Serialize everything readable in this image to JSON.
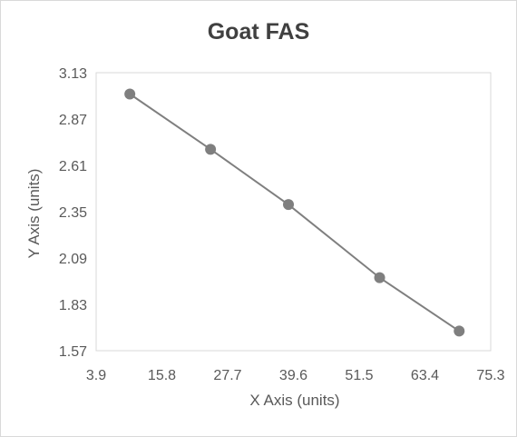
{
  "chart_data": {
    "type": "line",
    "title": "Goat FAS",
    "xlabel": "X Axis (units)",
    "ylabel": "Y Axis (units)",
    "xlim": [
      3.9,
      75.3
    ],
    "ylim": [
      1.57,
      3.13
    ],
    "x_ticks": [
      "3.9",
      "15.8",
      "27.7",
      "39.6",
      "51.5",
      "63.4",
      "75.3"
    ],
    "y_ticks": [
      "3.13",
      "2.87",
      "2.61",
      "2.35",
      "2.09",
      "1.83",
      "1.57"
    ],
    "grid": false,
    "legend": "none",
    "series": [
      {
        "x": [
          10,
          24.6,
          38.7,
          55.2,
          69.6
        ],
        "y": [
          3.01,
          2.7,
          2.39,
          1.98,
          1.68
        ],
        "color": "#7f7f7f",
        "marker": "circle"
      }
    ]
  }
}
